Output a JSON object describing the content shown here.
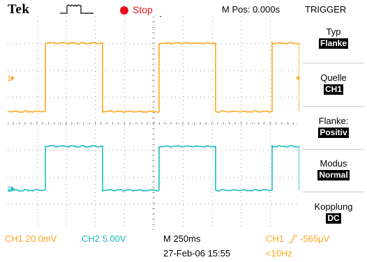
{
  "colors": {
    "ch1": "#ffa51e",
    "ch2": "#1cbcbe",
    "stop": "#e8101c",
    "grid": "#9a9a9a"
  },
  "topbar": {
    "brand": "Tek",
    "acquisition_icon": "pulse-icon",
    "run_state": "Stop",
    "mpos": "M Pos: 0.000s"
  },
  "graticule": {
    "divisions_x": 10,
    "divisions_y": 8,
    "ch1_marker": "1",
    "ch2_marker": "2",
    "trigger_position_icon": "trigger-position-arrow-icon"
  },
  "menu": {
    "title": "TRIGGER",
    "items": [
      {
        "label": "Typ",
        "value": "Flanke"
      },
      {
        "label": "Quelle",
        "value": "CH1"
      },
      {
        "label": "Flanke:",
        "value": "Positiv"
      },
      {
        "label": "Modus",
        "value": "Normal"
      },
      {
        "label": "Kopplung",
        "value": "DC"
      }
    ]
  },
  "readouts": {
    "ch1_scale": "CH1  20.0mV",
    "ch2_scale": "CH2  5.00V",
    "timebase": "M 250ms",
    "date": "27-Feb-06 15:55",
    "trig_source": "CH1",
    "trig_slope_icon": "rising-edge-icon",
    "trig_level": "-565μV",
    "trig_freq": "<10Hz"
  }
}
